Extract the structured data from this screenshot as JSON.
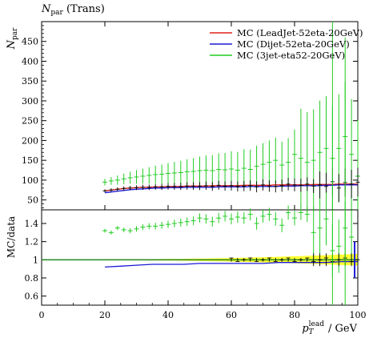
{
  "header": {
    "plot_title_main": "N",
    "plot_title_sub": "par",
    "plot_title_rest": " (Trans)"
  },
  "chart_data": [
    {
      "type": "line",
      "panel": "main",
      "ylabel_main": "N",
      "ylabel_sub": "par",
      "ylim": [
        25,
        500
      ],
      "yticks": [
        50,
        100,
        150,
        200,
        250,
        300,
        350,
        400,
        450
      ],
      "xlim": [
        0,
        100
      ],
      "legend_position": "top-right",
      "series": [
        {
          "name": "MC (LeadJet-52eta-20GeV)",
          "color": "#e0201a",
          "x": [
            20,
            22,
            24,
            26,
            28,
            30,
            32,
            34,
            36,
            38,
            40,
            42,
            44,
            46,
            48,
            50,
            52,
            54,
            56,
            58,
            60,
            62,
            64,
            66,
            68,
            70,
            72,
            74,
            76,
            78,
            80,
            82,
            84,
            86,
            88,
            90,
            92,
            94,
            96,
            98,
            100
          ],
          "y": [
            73,
            75,
            77,
            79,
            80,
            81,
            82,
            82,
            83,
            83,
            84,
            84,
            84,
            85,
            85,
            85,
            85,
            86,
            86,
            86,
            86,
            86,
            87,
            87,
            87,
            87,
            87,
            88,
            88,
            88,
            88,
            88,
            88,
            89,
            89,
            89,
            89,
            90,
            90,
            90,
            90
          ]
        },
        {
          "name": "MC (Dijet-52eta-20GeV)",
          "color": "#1a1ad6",
          "x": [
            20,
            22,
            24,
            26,
            28,
            30,
            32,
            34,
            36,
            38,
            40,
            42,
            44,
            46,
            48,
            50,
            52,
            54,
            56,
            58,
            60,
            62,
            64,
            66,
            68,
            70,
            72,
            74,
            76,
            78,
            80,
            82,
            84,
            86,
            88,
            90,
            92,
            94,
            96,
            98,
            100
          ],
          "y": [
            68,
            70,
            72,
            74,
            76,
            77,
            78,
            79,
            80,
            80,
            81,
            81,
            81,
            82,
            82,
            82,
            82,
            82,
            83,
            83,
            83,
            83,
            83,
            84,
            84,
            84,
            84,
            84,
            85,
            85,
            85,
            86,
            86,
            86,
            86,
            87,
            87,
            88,
            88,
            88,
            88
          ]
        },
        {
          "name": "MC (3jet-eta52-20GeV)",
          "color": "#22cc22",
          "x": [
            20,
            22,
            24,
            26,
            28,
            30,
            32,
            34,
            36,
            38,
            40,
            42,
            44,
            46,
            48,
            50,
            52,
            54,
            56,
            58,
            60,
            62,
            64,
            66,
            68,
            70,
            72,
            74,
            76,
            78,
            80,
            82,
            84,
            86,
            88,
            90,
            92,
            94,
            96,
            98,
            100
          ],
          "y": [
            95,
            98,
            100,
            103,
            106,
            108,
            110,
            112,
            114,
            115,
            117,
            118,
            119,
            121,
            122,
            124,
            125,
            124,
            127,
            126,
            128,
            125,
            130,
            127,
            135,
            140,
            145,
            150,
            138,
            145,
            165,
            155,
            145,
            150,
            170,
            180,
            155,
            180,
            210,
            165,
            110
          ]
        }
      ],
      "data_points": {
        "color": "#000000",
        "x": [
          20,
          22,
          24,
          26,
          28,
          30,
          32,
          34,
          36,
          38,
          40,
          42,
          44,
          46,
          48,
          50,
          52,
          54,
          56,
          58,
          60,
          62,
          64,
          66,
          68,
          70,
          72,
          74,
          76,
          78,
          80,
          82,
          84,
          86,
          88,
          90,
          92,
          94,
          96,
          98,
          100
        ],
        "y": [
          73,
          75,
          77,
          79,
          80,
          81,
          82,
          82,
          83,
          83,
          84,
          84,
          84,
          85,
          85,
          85,
          86,
          84,
          87,
          85,
          86,
          84,
          85,
          86,
          83,
          88,
          85,
          84,
          86,
          90,
          88,
          87,
          90,
          85,
          88,
          84,
          96,
          80,
          94,
          90,
          95
        ]
      }
    },
    {
      "type": "line",
      "panel": "ratio",
      "ylabel": "MC/data",
      "ylim": [
        0.5,
        1.55
      ],
      "yticks": [
        0.6,
        0.8,
        1,
        1.2,
        1.4
      ],
      "xlim": [
        0,
        100
      ],
      "xticks": [
        0,
        20,
        40,
        60,
        80,
        100
      ],
      "xlabel_main": "p",
      "xlabel_sub": "T",
      "xlabel_sup": "lead",
      "xlabel_rest": "/ GeV",
      "series": [
        {
          "name": "MC (LeadJet-52eta-20GeV)",
          "color": "#e0201a",
          "x": [
            0,
            20,
            30,
            40,
            50,
            60,
            70,
            80,
            90,
            100
          ],
          "y": [
            1.0,
            1.0,
            1.0,
            1.0,
            1.0,
            1.0,
            1.0,
            1.0,
            1.0,
            1.0
          ]
        },
        {
          "name": "MC (Dijet-52eta-20GeV)",
          "color": "#1a1ad6",
          "x": [
            20,
            25,
            30,
            35,
            40,
            45,
            50,
            55,
            60,
            65,
            70,
            75,
            80,
            85,
            90,
            95,
            100
          ],
          "y": [
            0.92,
            0.93,
            0.94,
            0.95,
            0.95,
            0.95,
            0.96,
            0.96,
            0.96,
            0.96,
            0.96,
            0.97,
            0.97,
            0.97,
            0.97,
            0.98,
            0.98
          ]
        },
        {
          "name": "MC (3jet-eta52-20GeV)",
          "color": "#22cc22",
          "x": [
            20,
            22,
            24,
            26,
            28,
            30,
            32,
            34,
            36,
            38,
            40,
            42,
            44,
            46,
            48,
            50,
            52,
            54,
            56,
            58,
            60,
            62,
            64,
            66,
            68,
            70,
            72,
            74,
            76,
            78,
            80,
            82,
            84,
            86,
            88,
            90,
            92,
            94,
            96,
            98
          ],
          "y": [
            1.32,
            1.3,
            1.35,
            1.33,
            1.32,
            1.34,
            1.36,
            1.37,
            1.37,
            1.38,
            1.39,
            1.4,
            1.41,
            1.42,
            1.43,
            1.46,
            1.45,
            1.42,
            1.46,
            1.48,
            1.45,
            1.47,
            1.46,
            1.5,
            1.4,
            1.48,
            1.5,
            1.45,
            1.38,
            1.52,
            1.46,
            1.52,
            1.5,
            1.3,
            1.35,
            1.45,
            1.1,
            1.15,
            1.35,
            1.25
          ]
        }
      ]
    }
  ]
}
